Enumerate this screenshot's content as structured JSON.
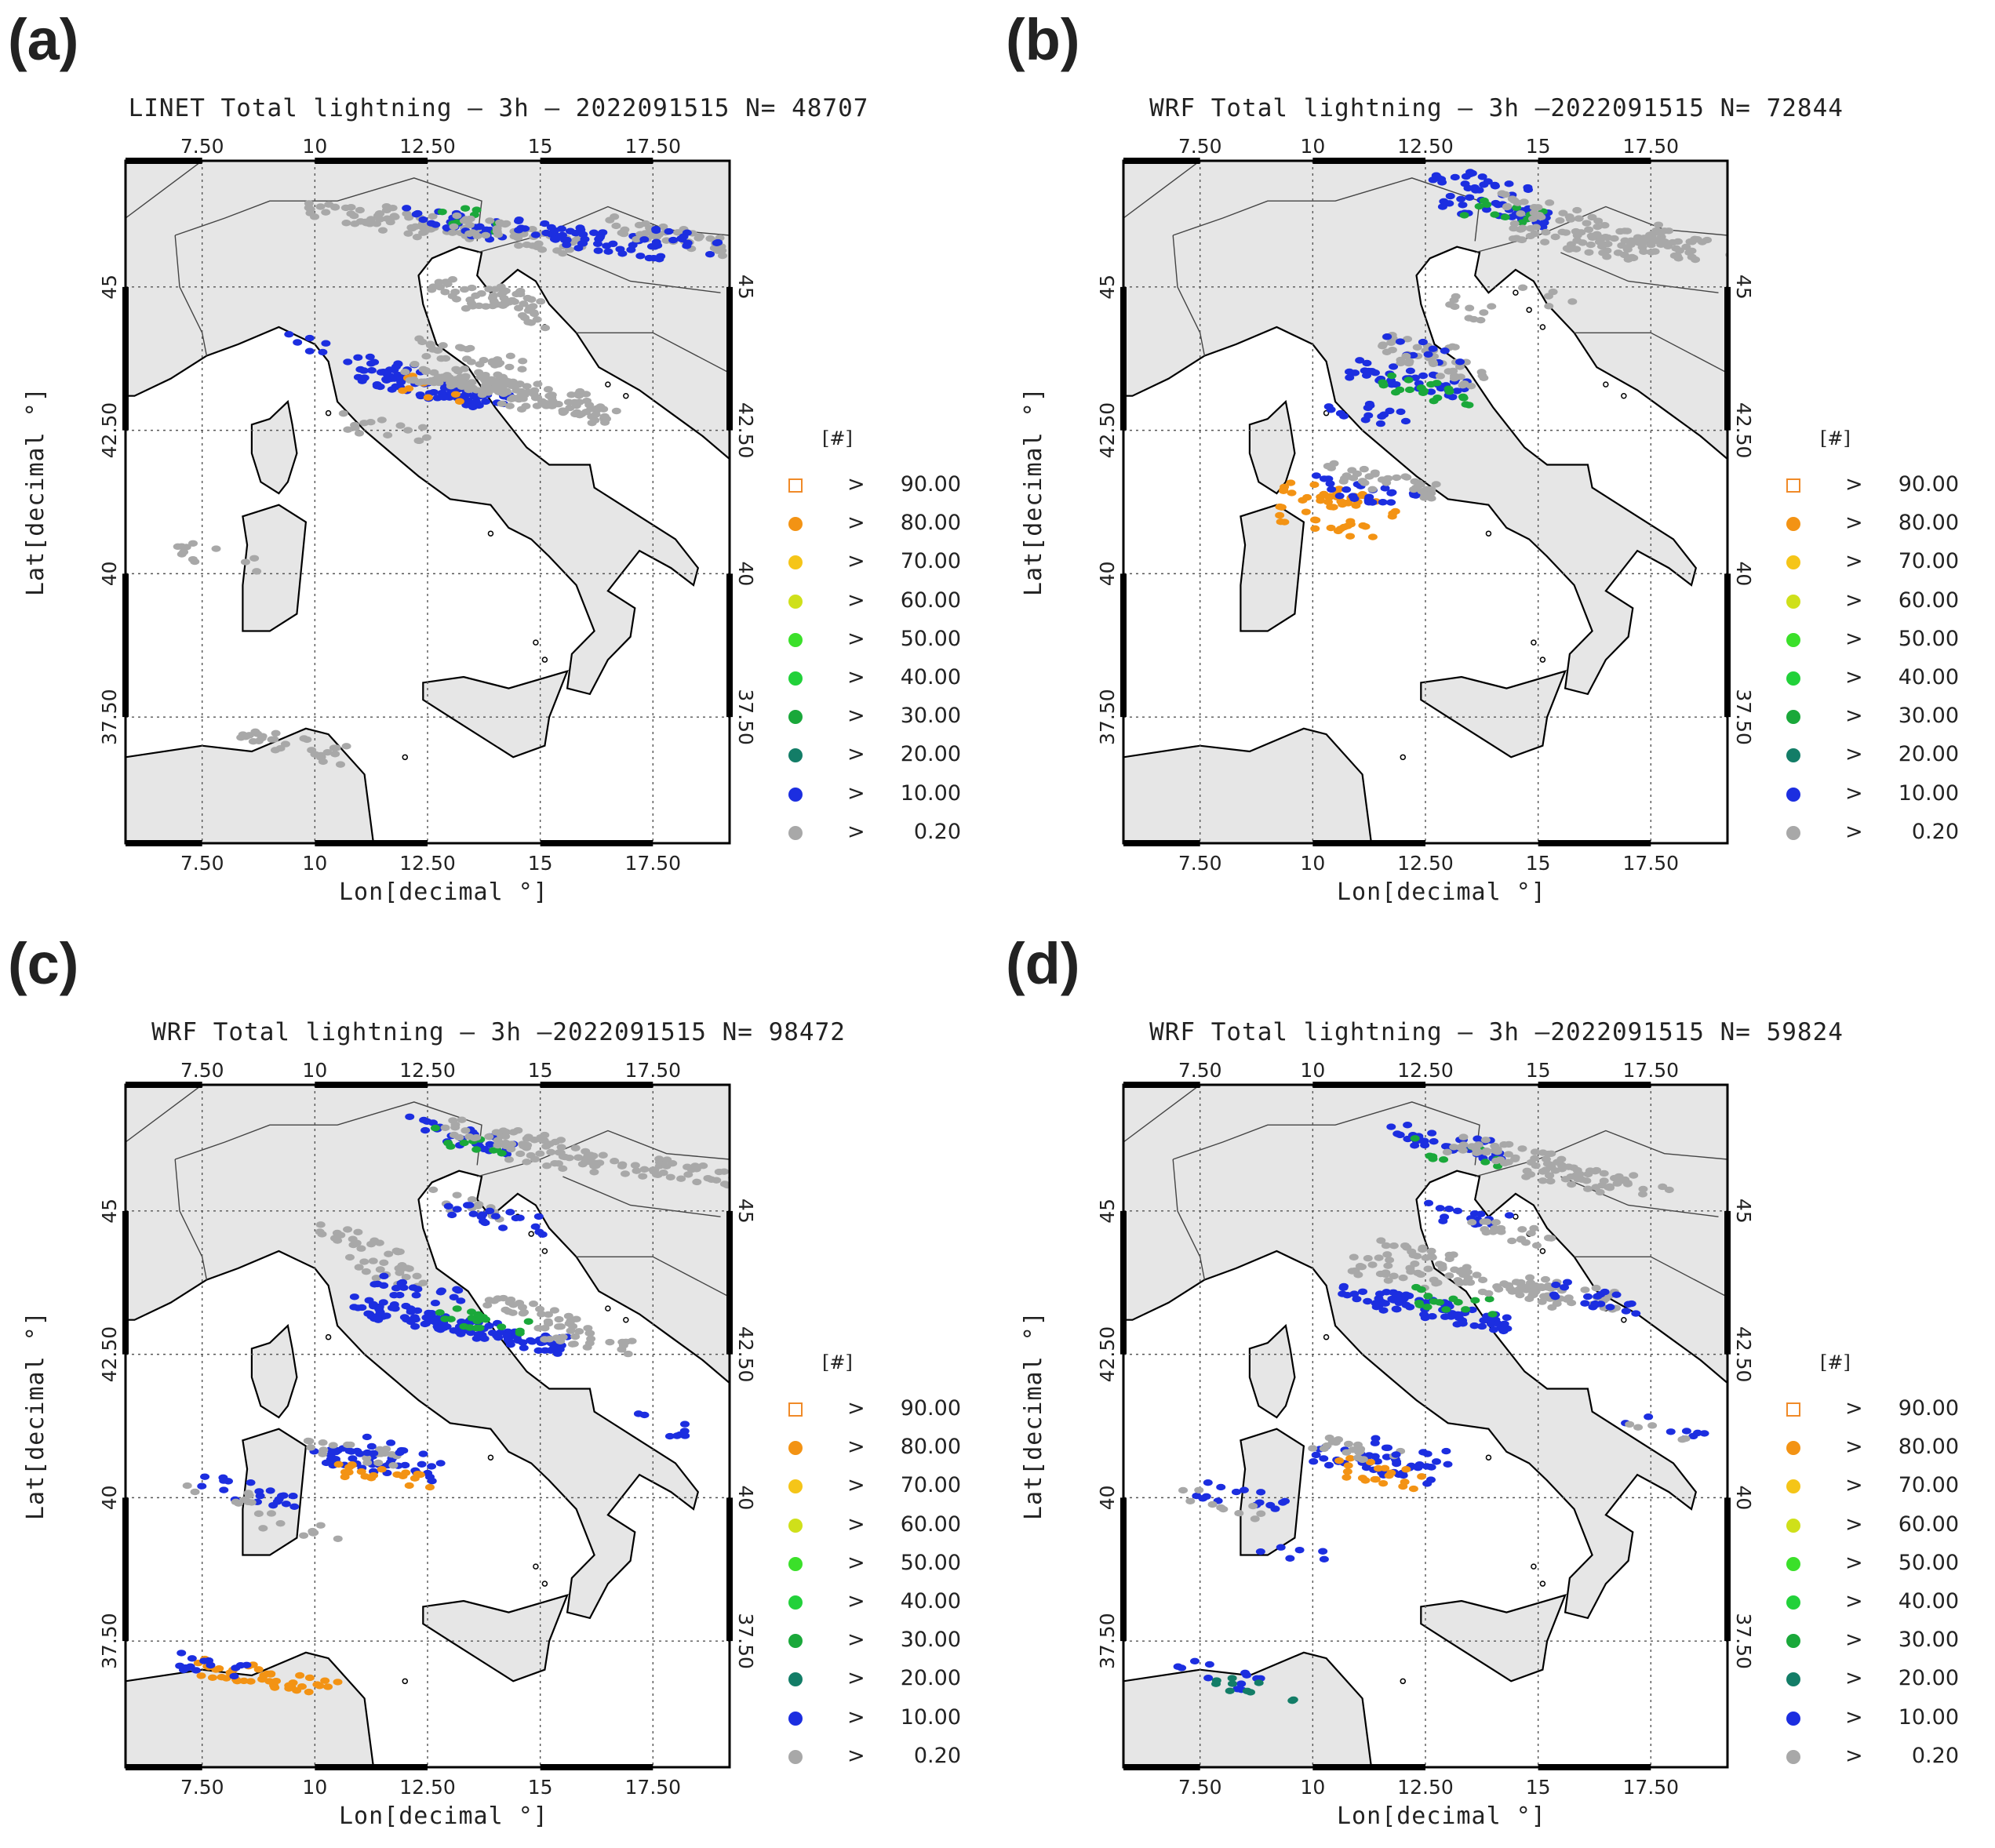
{
  "panels": [
    {
      "letter": "(a)",
      "title": "LINET Total lightning  –  3h  –  2022091515  N=  48707",
      "scenario": "a"
    },
    {
      "letter": "(b)",
      "title": "WRF Total lightning  –  3h  –2022091515  N=  72844",
      "scenario": "b"
    },
    {
      "letter": "(c)",
      "title": "WRF Total lightning  –  3h  –2022091515  N=  98472",
      "scenario": "c"
    },
    {
      "letter": "(d)",
      "title": "WRF Total lightning  –  3h  –2022091515  N=  59824",
      "scenario": "d"
    }
  ],
  "axes": {
    "xlabel": "Lon[decimal °]",
    "ylabel": "Lat[decimal °]",
    "lon_ticks": [
      "7.50",
      "10",
      "12.50",
      "15",
      "17.50"
    ],
    "lat_ticks": [
      "37.50",
      "40",
      "42.50",
      "45"
    ],
    "lon_values": [
      7.5,
      10,
      12.5,
      15,
      17.5
    ],
    "lat_values": [
      37.5,
      40,
      42.5,
      45
    ],
    "lon_range": [
      5.8,
      19.2
    ],
    "lat_range": [
      35.3,
      47.2
    ]
  },
  "legend": {
    "unit": "[#]",
    "gt": ">",
    "items": [
      {
        "value": "90.00",
        "color": "#f08a28",
        "style": "open-square"
      },
      {
        "value": "80.00",
        "color": "#f39314"
      },
      {
        "value": "70.00",
        "color": "#f5c518"
      },
      {
        "value": "60.00",
        "color": "#cfe01a"
      },
      {
        "value": "50.00",
        "color": "#3be02a"
      },
      {
        "value": "40.00",
        "color": "#22d13a"
      },
      {
        "value": "30.00",
        "color": "#1aa83a"
      },
      {
        "value": "20.00",
        "color": "#137d67"
      },
      {
        "value": "10.00",
        "color": "#1c2ee0"
      },
      {
        "value": "0.20",
        "color": "#a8a8a8"
      }
    ]
  },
  "colors": {
    "land": "#e6e6e6",
    "sea": "#ffffff",
    "coast": "#000000",
    "grid": "#555555"
  }
}
